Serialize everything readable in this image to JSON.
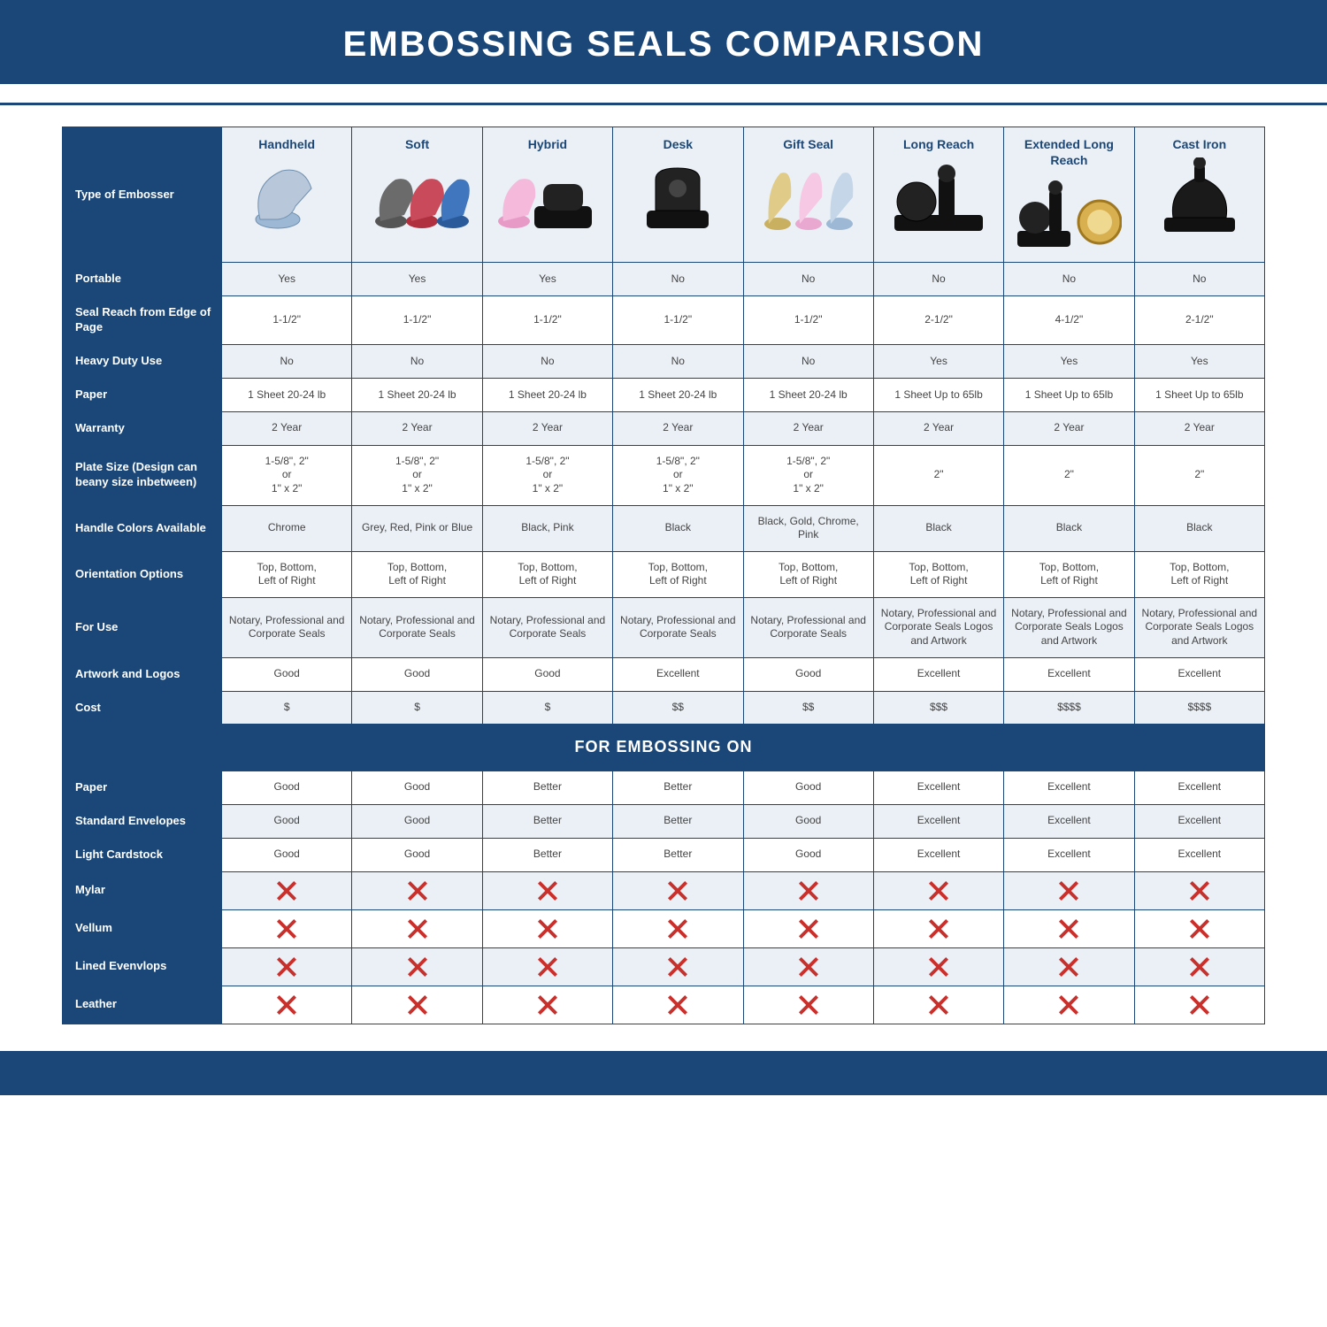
{
  "title": "EMBOSSING SEALS COMPARISON",
  "colors": {
    "primary": "#1a4777",
    "header_bg": "#eaf0f6",
    "zebra_bg": "#eaf0f6",
    "plain_bg": "#ffffff",
    "x_red": "#c9302c",
    "text": "#444444"
  },
  "table": {
    "type": "comparison-table",
    "type_of_embosser_label": "Type of Embosser",
    "columns": [
      {
        "key": "handheld",
        "label": "Handheld"
      },
      {
        "key": "soft",
        "label": "Soft"
      },
      {
        "key": "hybrid",
        "label": "Hybrid"
      },
      {
        "key": "desk",
        "label": "Desk"
      },
      {
        "key": "giftseal",
        "label": "Gift Seal"
      },
      {
        "key": "longreach",
        "label": "Long Reach"
      },
      {
        "key": "extlongreach",
        "label": "Extended Long Reach"
      },
      {
        "key": "castiron",
        "label": "Cast Iron"
      }
    ],
    "rows": [
      {
        "label": "Portable",
        "zebra": true,
        "cells": [
          "Yes",
          "Yes",
          "Yes",
          "No",
          "No",
          "No",
          "No",
          "No"
        ]
      },
      {
        "label": "Seal Reach from Edge of Page",
        "zebra": false,
        "cells": [
          "1-1/2\"",
          "1-1/2\"",
          "1-1/2\"",
          "1-1/2\"",
          "1-1/2\"",
          "2-1/2\"",
          "4-1/2\"",
          "2-1/2\""
        ]
      },
      {
        "label": "Heavy Duty Use",
        "zebra": true,
        "cells": [
          "No",
          "No",
          "No",
          "No",
          "No",
          "Yes",
          "Yes",
          "Yes"
        ]
      },
      {
        "label": "Paper",
        "zebra": false,
        "cells": [
          "1 Sheet 20-24 lb",
          "1 Sheet 20-24 lb",
          "1 Sheet 20-24 lb",
          "1 Sheet 20-24 lb",
          "1 Sheet 20-24 lb",
          "1 Sheet Up to 65lb",
          "1 Sheet Up to 65lb",
          "1 Sheet Up to 65lb"
        ]
      },
      {
        "label": "Warranty",
        "zebra": true,
        "cells": [
          "2 Year",
          "2 Year",
          "2 Year",
          "2 Year",
          "2 Year",
          "2 Year",
          "2 Year",
          "2 Year"
        ]
      },
      {
        "label": "Plate Size (Design can beany size inbetween)",
        "zebra": false,
        "cells": [
          "1-5/8\", 2\"\nor\n1\" x 2\"",
          "1-5/8\", 2\"\nor\n1\" x 2\"",
          "1-5/8\", 2\"\nor\n1\" x 2\"",
          "1-5/8\", 2\"\nor\n1\" x 2\"",
          "1-5/8\", 2\"\nor\n1\" x 2\"",
          "2\"",
          "2\"",
          "2\""
        ]
      },
      {
        "label": "Handle Colors Available",
        "zebra": true,
        "cells": [
          "Chrome",
          "Grey, Red, Pink or Blue",
          "Black, Pink",
          "Black",
          "Black, Gold, Chrome, Pink",
          "Black",
          "Black",
          "Black"
        ]
      },
      {
        "label": "Orientation Options",
        "zebra": false,
        "cells": [
          "Top, Bottom,\nLeft of Right",
          "Top, Bottom,\nLeft of Right",
          "Top, Bottom,\nLeft of Right",
          "Top, Bottom,\nLeft of Right",
          "Top, Bottom,\nLeft of Right",
          "Top, Bottom,\nLeft of Right",
          "Top, Bottom,\nLeft of Right",
          "Top, Bottom,\nLeft of Right"
        ]
      },
      {
        "label": "For Use",
        "zebra": true,
        "cells": [
          "Notary, Professional and Corporate Seals",
          "Notary, Professional and Corporate Seals",
          "Notary, Professional and Corporate Seals",
          "Notary, Professional and Corporate Seals",
          "Notary, Professional and Corporate Seals",
          "Notary, Professional and Corporate Seals Logos and Artwork",
          "Notary, Professional and Corporate Seals Logos and Artwork",
          "Notary, Professional and Corporate Seals Logos and Artwork"
        ]
      },
      {
        "label": "Artwork and Logos",
        "zebra": false,
        "cells": [
          "Good",
          "Good",
          "Good",
          "Excellent",
          "Good",
          "Excellent",
          "Excellent",
          "Excellent"
        ]
      },
      {
        "label": "Cost",
        "zebra": true,
        "cells": [
          "$",
          "$",
          "$",
          "$$",
          "$$",
          "$$$",
          "$$$$",
          "$$$$"
        ]
      }
    ],
    "section_label": "FOR EMBOSSING ON",
    "rows2": [
      {
        "label": "Paper",
        "zebra": false,
        "cells": [
          "Good",
          "Good",
          "Better",
          "Better",
          "Good",
          "Excellent",
          "Excellent",
          "Excellent"
        ]
      },
      {
        "label": "Standard Envelopes",
        "zebra": true,
        "cells": [
          "Good",
          "Good",
          "Better",
          "Better",
          "Good",
          "Excellent",
          "Excellent",
          "Excellent"
        ]
      },
      {
        "label": "Light Cardstock",
        "zebra": false,
        "cells": [
          "Good",
          "Good",
          "Better",
          "Better",
          "Good",
          "Excellent",
          "Excellent",
          "Excellent"
        ]
      },
      {
        "label": "Mylar",
        "zebra": true,
        "x": true
      },
      {
        "label": "Vellum",
        "zebra": false,
        "x": true
      },
      {
        "label": "Lined Evenvlops",
        "zebra": true,
        "x": true
      },
      {
        "label": "Leather",
        "zebra": false,
        "x": true
      }
    ]
  }
}
